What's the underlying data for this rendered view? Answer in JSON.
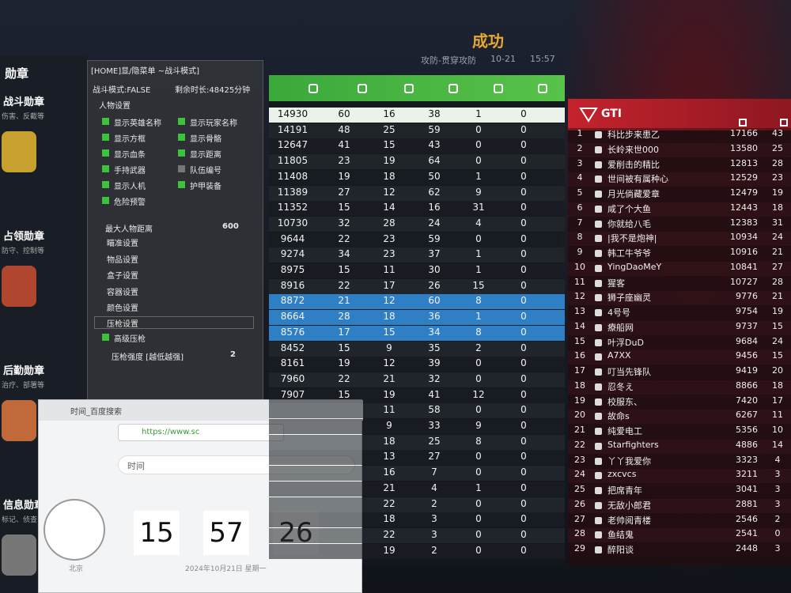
{
  "header": {
    "title": "成功",
    "mode": "攻防-贯穿攻防",
    "date": "10-21",
    "time": "15:57"
  },
  "medals": {
    "title": "勋章",
    "items": [
      {
        "name": "战斗勋章",
        "desc": "伤害、反截等"
      },
      {
        "name": "占领勋章",
        "desc": "防守、控制等"
      },
      {
        "name": "后勤勋章",
        "desc": "治疗、部署等"
      },
      {
        "name": "信息勋章",
        "desc": "标记、侦查"
      }
    ]
  },
  "menu": {
    "title": "[HOME]显/隐菜单 ~战斗模式]",
    "mode": "战斗模式:FALSE",
    "remaining": "剩余时长:48425分钟",
    "section": "人物设置",
    "options": [
      {
        "label": "显示英雄名称",
        "on": true
      },
      {
        "label": "显示玩家名称",
        "on": true
      },
      {
        "label": "显示方框",
        "on": true
      },
      {
        "label": "显示骨骼",
        "on": true
      },
      {
        "label": "显示血条",
        "on": true
      },
      {
        "label": "显示距离",
        "on": true
      },
      {
        "label": "手持武器",
        "on": true
      },
      {
        "label": "队伍编号",
        "on": false
      },
      {
        "label": "显示人机",
        "on": true
      },
      {
        "label": "护甲装备",
        "on": true
      },
      {
        "label": "危险预警",
        "on": true
      }
    ],
    "distance_label": "最大人物距离",
    "distance_value": 600,
    "sections": [
      "瞄准设置",
      "物品设置",
      "盒子设置",
      "容器设置",
      "颜色设置"
    ],
    "recoil_section": "压枪设置",
    "recoil_option": "高级压枪",
    "recoil_label": "压枪强度 [越低越强]",
    "recoil_value": 2
  },
  "left_team": {
    "rows": [
      [
        14930,
        60,
        16,
        38,
        1,
        0
      ],
      [
        14191,
        48,
        25,
        59,
        0,
        0
      ],
      [
        12647,
        41,
        15,
        43,
        0,
        0
      ],
      [
        11805,
        23,
        19,
        64,
        0,
        0
      ],
      [
        11408,
        19,
        18,
        50,
        1,
        0
      ],
      [
        11389,
        27,
        12,
        62,
        9,
        0
      ],
      [
        11352,
        15,
        14,
        16,
        31,
        0
      ],
      [
        10730,
        32,
        28,
        24,
        4,
        0
      ],
      [
        9644,
        22,
        23,
        59,
        0,
        0
      ],
      [
        9274,
        34,
        23,
        37,
        1,
        0
      ],
      [
        8975,
        15,
        11,
        30,
        1,
        0
      ],
      [
        8916,
        22,
        17,
        26,
        15,
        0
      ],
      [
        8872,
        21,
        12,
        60,
        8,
        0
      ],
      [
        8664,
        28,
        18,
        36,
        1,
        0
      ],
      [
        8576,
        17,
        15,
        34,
        8,
        0
      ],
      [
        8452,
        15,
        9,
        35,
        2,
        0
      ],
      [
        8161,
        19,
        12,
        39,
        0,
        0
      ],
      [
        7960,
        22,
        21,
        32,
        0,
        0
      ],
      [
        7907,
        15,
        19,
        41,
        12,
        0
      ],
      [
        null,
        null,
        11,
        58,
        0,
        0
      ],
      [
        null,
        null,
        9,
        33,
        9,
        0
      ],
      [
        null,
        null,
        18,
        25,
        8,
        0
      ],
      [
        null,
        null,
        13,
        27,
        0,
        0
      ],
      [
        null,
        null,
        16,
        7,
        0,
        0
      ],
      [
        null,
        null,
        21,
        4,
        1,
        0
      ],
      [
        null,
        null,
        22,
        2,
        0,
        0
      ],
      [
        null,
        null,
        18,
        3,
        0,
        0
      ],
      [
        null,
        null,
        22,
        3,
        0,
        0
      ],
      [
        null,
        null,
        19,
        2,
        0,
        0
      ]
    ]
  },
  "right_team": {
    "name": "GTI",
    "rows": [
      [
        1,
        "科比步来患乙",
        17166,
        43
      ],
      [
        2,
        "长岭来世000",
        13580,
        25
      ],
      [
        3,
        "爱削击的精比",
        12813,
        28
      ],
      [
        4,
        "世间被有属种心",
        12529,
        23
      ],
      [
        5,
        "月光倘藏爱章",
        12479,
        19
      ],
      [
        6,
        "咸了个大鱼",
        12443,
        18
      ],
      [
        7,
        "你就给八毛",
        12383,
        31
      ],
      [
        8,
        "|我不是炮神|",
        10934,
        24
      ],
      [
        9,
        "韩工牛爷爷",
        10916,
        21
      ],
      [
        10,
        "YingDaoMeY",
        10841,
        27
      ],
      [
        11,
        "猩客",
        10727,
        28
      ],
      [
        12,
        "狮子座幽灵",
        9776,
        21
      ],
      [
        13,
        "4号号",
        9754,
        19
      ],
      [
        14,
        "療船网",
        9737,
        15
      ],
      [
        15,
        "叶浮DuD",
        9684,
        24
      ],
      [
        16,
        "A7XX",
        9456,
        15
      ],
      [
        17,
        "叮当先锋队",
        9419,
        20
      ],
      [
        18,
        "忍冬え",
        8866,
        18
      ],
      [
        19,
        "校服东、",
        7420,
        17
      ],
      [
        20,
        "故命s",
        6267,
        11
      ],
      [
        21,
        "纯爱电工",
        5356,
        10
      ],
      [
        22,
        "Starfighters",
        4886,
        14
      ],
      [
        23,
        "丫丫我爱你",
        3323,
        4
      ],
      [
        24,
        "zxcvcs",
        3211,
        3
      ],
      [
        25,
        "把席青年",
        3041,
        3
      ],
      [
        26,
        "无敌小郎君",
        2881,
        3
      ],
      [
        27,
        "老帅阅青楼",
        2546,
        2
      ],
      [
        28,
        "鱼结鬼",
        2541,
        0
      ],
      [
        29,
        "醉阳谈",
        2448,
        3
      ]
    ]
  },
  "browser": {
    "tab": "时间_百度搜索",
    "url": "https://www.sc",
    "search": "时间",
    "hours": "15",
    "minutes": "57",
    "seconds": "26",
    "date": "2024年10月21日 星期一",
    "city": "北京"
  }
}
